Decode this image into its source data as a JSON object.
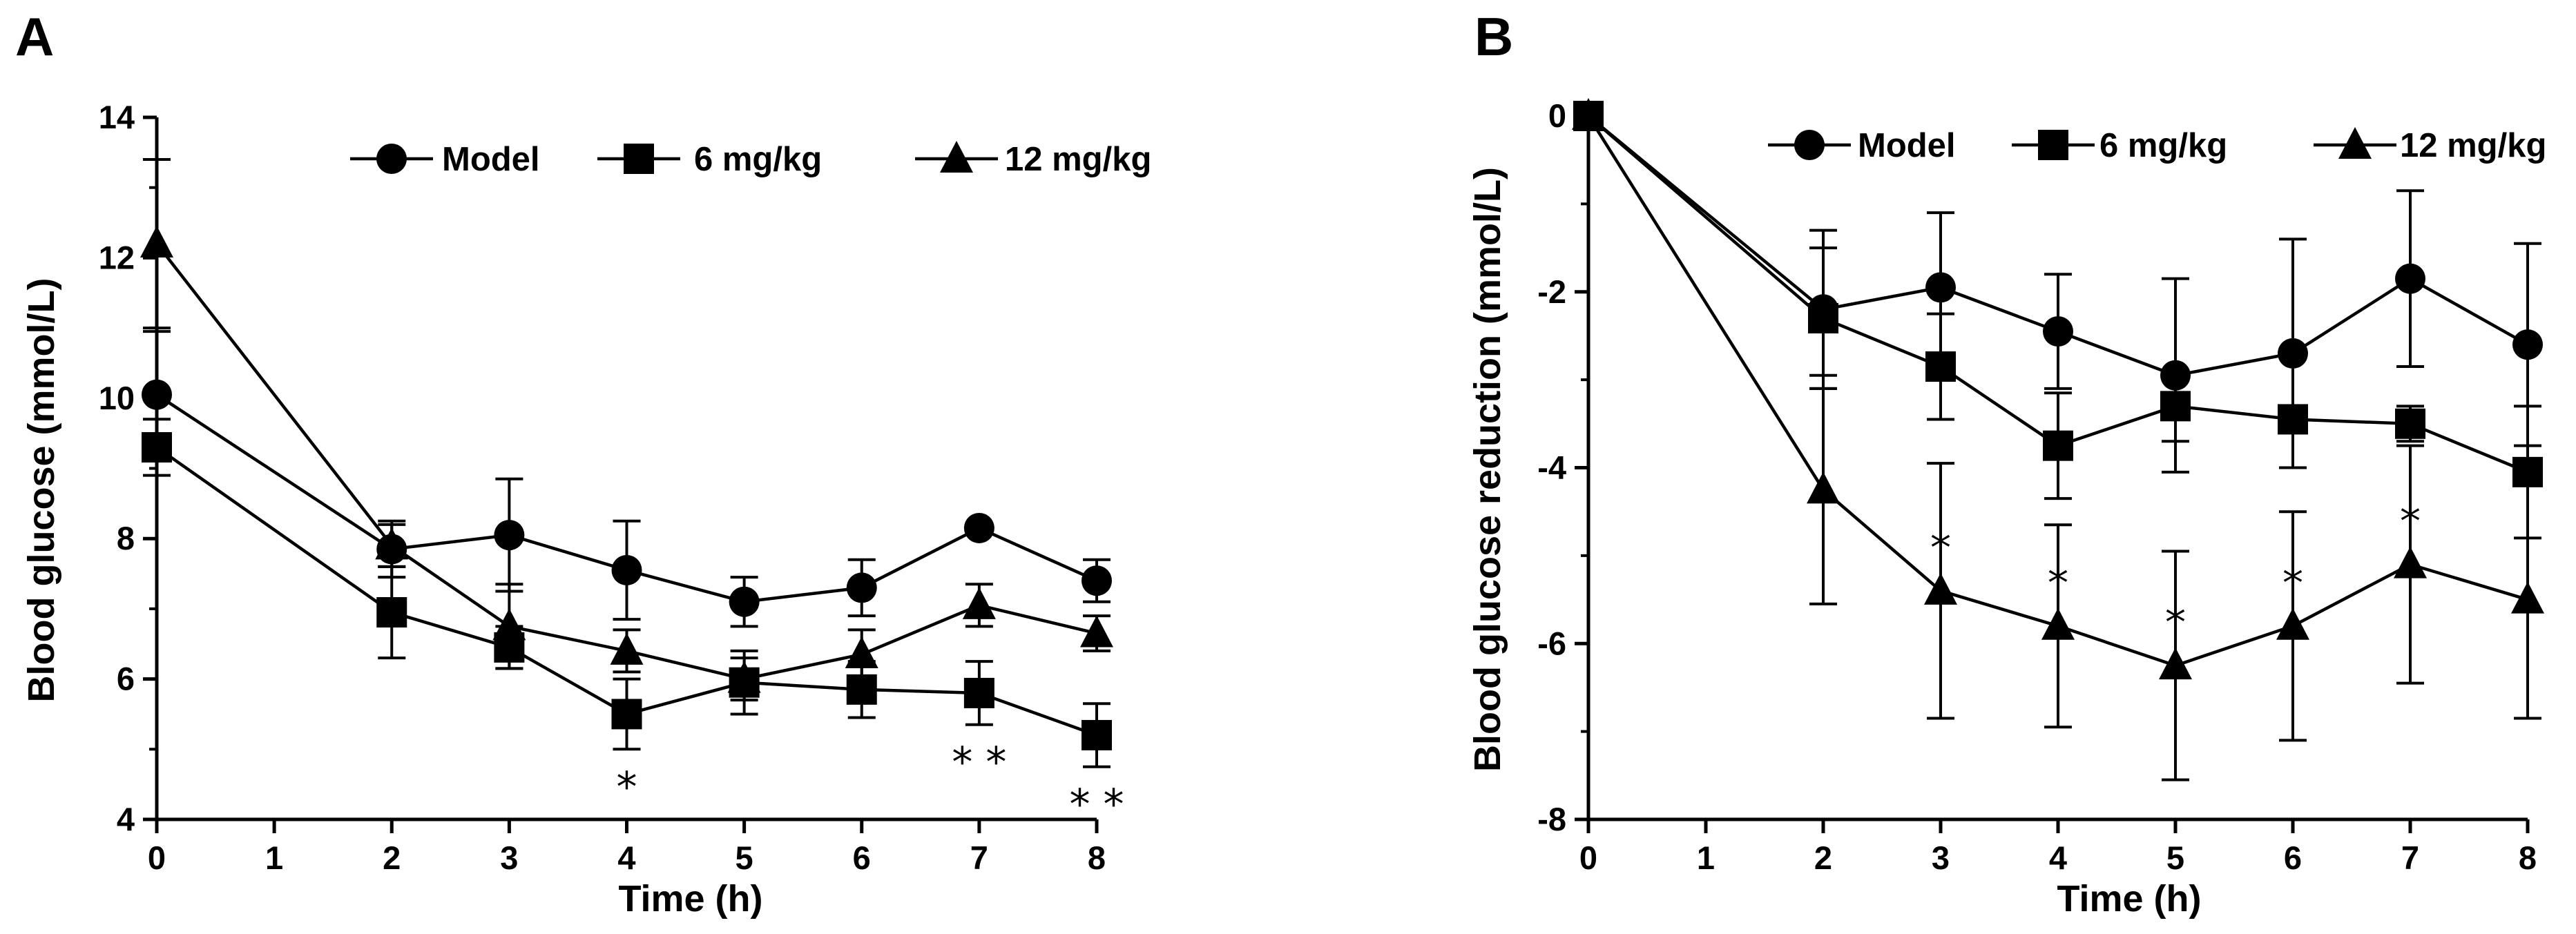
{
  "chart_data": [
    {
      "panel": "A",
      "type": "line",
      "xlabel": "Time (h)",
      "ylabel": "Blood glucose (mmol/L)",
      "xlim": [
        0,
        8
      ],
      "ylim": [
        4,
        14
      ],
      "xticks": [
        0,
        1,
        2,
        3,
        4,
        5,
        6,
        7,
        8
      ],
      "yticks": [
        4,
        6,
        8,
        10,
        12,
        14
      ],
      "legend_position": "top",
      "x": [
        0,
        2,
        3,
        4,
        5,
        6,
        7,
        8
      ],
      "series": [
        {
          "name": "Model",
          "marker": "circle",
          "values": [
            10.05,
            7.85,
            8.05,
            7.55,
            7.1,
            7.3,
            8.15,
            7.4
          ],
          "errors": [
            0.9,
            0.4,
            0.8,
            0.7,
            0.35,
            0.4,
            0.0,
            0.3
          ]
        },
        {
          "name": "6 mg/kg",
          "marker": "square",
          "values": [
            9.3,
            6.95,
            6.45,
            5.5,
            5.95,
            5.85,
            5.8,
            5.2
          ],
          "errors": [
            0.4,
            0.65,
            0.3,
            0.5,
            0.45,
            0.4,
            0.45,
            0.45
          ]
        },
        {
          "name": "12 mg/kg",
          "marker": "triangle",
          "values": [
            12.2,
            7.9,
            6.75,
            6.4,
            6.0,
            6.35,
            7.05,
            6.65
          ],
          "errors": [
            1.2,
            0.3,
            0.6,
            0.3,
            0.3,
            0.35,
            0.3,
            0.25
          ]
        }
      ],
      "annotations": [
        {
          "x": 4,
          "text": "*"
        },
        {
          "x": 7,
          "text": "**"
        },
        {
          "x": 8,
          "text": "**"
        }
      ]
    },
    {
      "panel": "B",
      "type": "line",
      "xlabel": "Time (h)",
      "ylabel": "Blood glucose reduction (mmol/L)",
      "xlim": [
        0,
        8
      ],
      "ylim": [
        -8,
        0
      ],
      "xticks": [
        0,
        1,
        2,
        3,
        4,
        5,
        6,
        7,
        8
      ],
      "yticks": [
        0,
        -2,
        -4,
        -6,
        -8
      ],
      "legend_position": "top",
      "x": [
        0,
        2,
        3,
        4,
        5,
        6,
        7,
        8
      ],
      "series": [
        {
          "name": "Model",
          "marker": "circle",
          "values": [
            0,
            -2.2,
            -1.95,
            -2.45,
            -2.95,
            -2.7,
            -1.85,
            -2.6
          ],
          "errors": [
            0,
            0.9,
            0.85,
            0.65,
            1.1,
            1.3,
            1.0,
            1.15
          ]
        },
        {
          "name": "6 mg/kg",
          "marker": "square",
          "values": [
            0,
            -2.3,
            -2.85,
            -3.75,
            -3.3,
            -3.45,
            -3.5,
            -4.05
          ],
          "errors": [
            0,
            0.8,
            0.6,
            0.6,
            0.4,
            0.0,
            0.2,
            0.75
          ]
        },
        {
          "name": "12 mg/kg",
          "marker": "triangle",
          "values": [
            0,
            -4.25,
            -5.4,
            -5.8,
            -6.25,
            -5.8,
            -5.1,
            -5.5
          ],
          "errors": [
            0,
            1.3,
            1.45,
            1.15,
            1.3,
            1.3,
            1.35,
            1.35
          ]
        }
      ],
      "annotations": [
        {
          "x": 3,
          "text": "*"
        },
        {
          "x": 4,
          "text": "*"
        },
        {
          "x": 5,
          "text": "*"
        },
        {
          "x": 6,
          "text": "*"
        },
        {
          "x": 7,
          "text": "*"
        }
      ]
    }
  ]
}
